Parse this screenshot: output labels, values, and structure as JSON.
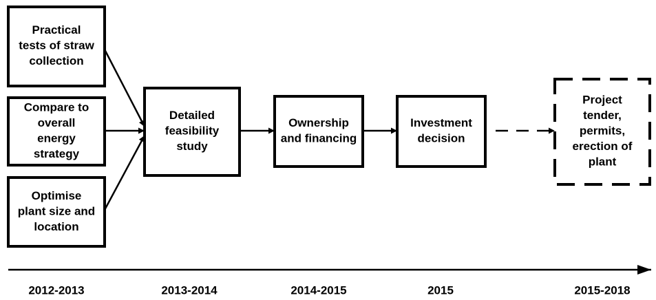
{
  "nodes": [
    {
      "lines": [
        "Practical",
        "tests of straw",
        "collection"
      ]
    },
    {
      "lines": [
        "Compare to",
        "overall",
        "energy",
        "strategy"
      ]
    },
    {
      "lines": [
        "Optimise",
        "plant size and",
        "location"
      ]
    },
    {
      "lines": [
        "Detailed",
        "feasibility",
        "study"
      ]
    },
    {
      "lines": [
        "Ownership",
        "and financing"
      ]
    },
    {
      "lines": [
        "Investment",
        "decision"
      ]
    },
    {
      "lines": [
        "Project",
        "tender,",
        "permits,",
        "erection of",
        "plant"
      ]
    }
  ],
  "timeline": [
    "2012-2013",
    "2013-2014",
    "2014-2015",
    "2015",
    "2015-2018"
  ]
}
